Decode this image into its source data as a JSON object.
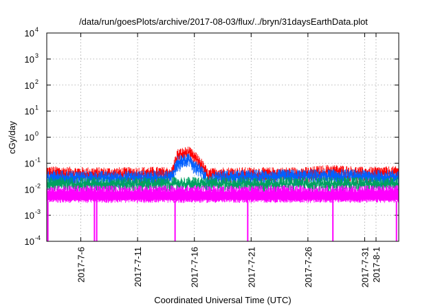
{
  "chart_data": {
    "type": "line",
    "title": "/data/run/goesPlots/archive/2017-08-03/flux/../bryn/31daysEarthData.plot",
    "xlabel": "Coordinated Universal Time (UTC)",
    "ylabel": "cGy/day",
    "yscale": "log",
    "ylim": [
      0.0001,
      10000
    ],
    "xlim": [
      "2017-07-03",
      "2017-08-03"
    ],
    "grid": true,
    "legend": "none",
    "x_ticks": [
      "2017-7-6",
      "2017-7-11",
      "2017-7-16",
      "2017-7-21",
      "2017-7-26",
      "2017-7-31",
      "2017-8-1"
    ],
    "y_ticks": [
      {
        "base": "10",
        "exp": "-4",
        "value": 0.0001
      },
      {
        "base": "10",
        "exp": "-3",
        "value": 0.001
      },
      {
        "base": "10",
        "exp": "-2",
        "value": 0.01
      },
      {
        "base": "10",
        "exp": "-1",
        "value": 0.1
      },
      {
        "base": "10",
        "exp": "0",
        "value": 1
      },
      {
        "base": "10",
        "exp": "1",
        "value": 10
      },
      {
        "base": "10",
        "exp": "2",
        "value": 100
      },
      {
        "base": "10",
        "exp": "3",
        "value": 1000
      },
      {
        "base": "10",
        "exp": "4",
        "value": 10000
      }
    ],
    "series": [
      {
        "color": "#ff0000",
        "upper": [
          [
            "2017-07-03",
            0.065
          ],
          [
            "2017-07-06",
            0.06
          ],
          [
            "2017-07-09",
            0.058
          ],
          [
            "2017-07-12",
            0.062
          ],
          [
            "2017-07-14",
            0.06
          ],
          [
            "2017-07-14.5",
            0.3
          ],
          [
            "2017-07-15.5",
            0.38
          ],
          [
            "2017-07-16.5",
            0.16
          ],
          [
            "2017-07-17.2",
            0.05
          ],
          [
            "2017-07-18",
            0.06
          ],
          [
            "2017-07-22",
            0.058
          ],
          [
            "2017-07-26",
            0.06
          ],
          [
            "2017-07-28",
            0.075
          ],
          [
            "2017-07-31",
            0.06
          ],
          [
            "2017-08-03",
            0.065
          ]
        ]
      },
      {
        "color": "#0060ff",
        "upper": [
          [
            "2017-07-03",
            0.045
          ],
          [
            "2017-07-08",
            0.042
          ],
          [
            "2017-07-14",
            0.045
          ],
          [
            "2017-07-14.5",
            0.17
          ],
          [
            "2017-07-15.5",
            0.2
          ],
          [
            "2017-07-16.5",
            0.09
          ],
          [
            "2017-07-17.2",
            0.03
          ],
          [
            "2017-07-18",
            0.045
          ],
          [
            "2017-07-28",
            0.05
          ],
          [
            "2017-08-03",
            0.045
          ]
        ]
      },
      {
        "color": "#00a060",
        "upper": [
          [
            "2017-07-03",
            0.025
          ],
          [
            "2017-08-03",
            0.025
          ]
        ]
      },
      {
        "color": "#ff00ff",
        "upper": [
          [
            "2017-07-03",
            0.012
          ],
          [
            "2017-08-03",
            0.012
          ]
        ],
        "lower": 0.0035,
        "dropouts": [
          "2017-07-03.1",
          "2017-07-07.2",
          "2017-07-07.4",
          "2017-07-14.3",
          "2017-07-20.7",
          "2017-07-28.2",
          "2017-08-02.8"
        ]
      }
    ]
  }
}
